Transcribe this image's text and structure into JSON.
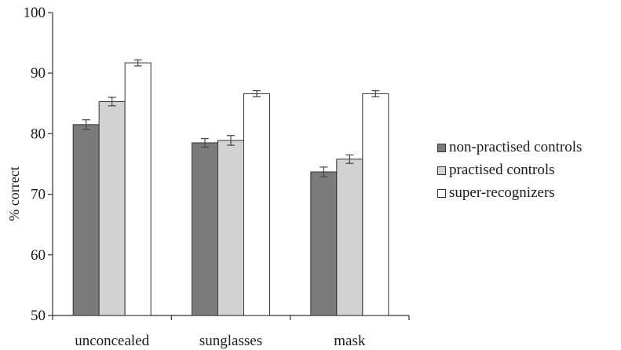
{
  "chart_data": {
    "type": "bar",
    "title": "",
    "xlabel": "",
    "ylabel": "% correct",
    "ylim": [
      50,
      100
    ],
    "yticks": [
      50,
      60,
      70,
      80,
      90,
      100
    ],
    "categories": [
      "unconcealed",
      "sunglasses",
      "mask"
    ],
    "series": [
      {
        "name": "non-practised controls",
        "color": "#7b7b7b",
        "values": [
          81.5,
          78.5,
          73.7
        ],
        "errors": [
          0.8,
          0.7,
          0.8
        ]
      },
      {
        "name": "practised controls",
        "color": "#d2d2d2",
        "values": [
          85.3,
          78.9,
          75.8
        ],
        "errors": [
          0.7,
          0.8,
          0.7
        ]
      },
      {
        "name": "super-recognizers",
        "color": "#ffffff",
        "values": [
          91.7,
          86.6,
          86.6
        ],
        "errors": [
          0.5,
          0.5,
          0.5
        ]
      }
    ],
    "grid": false,
    "legend_position": "right"
  }
}
